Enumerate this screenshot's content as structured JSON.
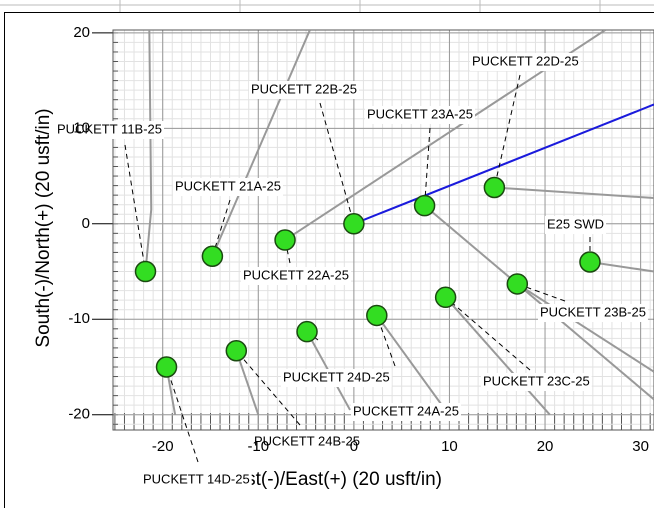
{
  "chart_data": {
    "type": "scatter",
    "xlabel": "West(-)/East(+) (20 usft/in)",
    "ylabel": "South(-)/North(+) (20 usft/in)",
    "xlim": [
      -25.2,
      31.4
    ],
    "ylim": [
      -21.6,
      20.3
    ],
    "xticks": [
      -20,
      -10,
      0,
      10,
      20,
      30
    ],
    "yticks": [
      -20,
      -10,
      0,
      10,
      20
    ],
    "grid": true,
    "marker_color": "#33dd22",
    "wells": [
      {
        "name": "PUCKETT 11B-25",
        "x": -21.8,
        "y": -5.0,
        "color": "#999999",
        "path_x": [
          -21.8,
          -21.2,
          -21.4
        ],
        "path_y": [
          -5.0,
          1.5,
          20.3
        ]
      },
      {
        "name": "PUCKETT 21A-25",
        "x": -14.8,
        "y": -3.4,
        "color": "#999999",
        "path_x": [
          -14.8,
          -4.6
        ],
        "path_y": [
          -3.4,
          20.3
        ]
      },
      {
        "name": "PUCKETT 22A-25",
        "x": -7.2,
        "y": -1.7,
        "color": "#999999",
        "path_x": [
          -7.2,
          26.3
        ],
        "path_y": [
          -1.7,
          20.3
        ]
      },
      {
        "name": "PUCKETT 22B-25",
        "x": 0,
        "y": 0,
        "color": "#1a1adc",
        "path_x": [
          0,
          31.4
        ],
        "path_y": [
          0,
          12.5
        ]
      },
      {
        "name": "PUCKETT 23A-25",
        "x": 7.4,
        "y": 1.9,
        "color": "#999999",
        "path_x": [
          7.4,
          31.4
        ],
        "path_y": [
          1.9,
          -18.4
        ]
      },
      {
        "name": "PUCKETT 22D-25",
        "x": 14.7,
        "y": 3.8,
        "color": "#999999",
        "path_x": [
          14.7,
          31.4
        ],
        "path_y": [
          3.8,
          2.7
        ]
      },
      {
        "name": "E25 SWD",
        "x": 24.7,
        "y": -4.0,
        "color": "#999999",
        "path_x": [
          24.7,
          31.4
        ],
        "path_y": [
          -4.0,
          -5.0
        ]
      },
      {
        "name": "PUCKETT 23B-25",
        "x": 17.1,
        "y": -6.3,
        "color": "#999999",
        "path_x": [
          17.1,
          31.4
        ],
        "path_y": [
          -6.3,
          -15.5
        ]
      },
      {
        "name": "PUCKETT 23C-25",
        "x": 9.6,
        "y": -7.7,
        "color": "#999999",
        "path_x": [
          9.6,
          20.5
        ],
        "path_y": [
          -7.7,
          -20.0
        ]
      },
      {
        "name": "PUCKETT 24D-25",
        "x": 2.4,
        "y": -9.6,
        "color": "#999999",
        "path_x": [
          2.4,
          10.3
        ],
        "path_y": [
          -9.6,
          -20.5
        ]
      },
      {
        "name": "PUCKETT 24A-25",
        "x": -4.9,
        "y": -11.3,
        "color": "#999999",
        "path_x": [
          -4.9,
          -0.4
        ],
        "path_y": [
          -11.3,
          -19.5
        ]
      },
      {
        "name": "PUCKETT 24B-25",
        "x": -12.3,
        "y": -13.3,
        "color": "#999999",
        "path_x": [
          -12.3,
          -10.0
        ],
        "path_y": [
          -13.3,
          -20.0
        ]
      },
      {
        "name": "PUCKETT 14D-25",
        "x": -19.6,
        "y": -15.0,
        "color": "#999999",
        "path_x": [
          -19.6,
          -18.7
        ],
        "path_y": [
          -15.0,
          -20.0
        ]
      }
    ]
  }
}
